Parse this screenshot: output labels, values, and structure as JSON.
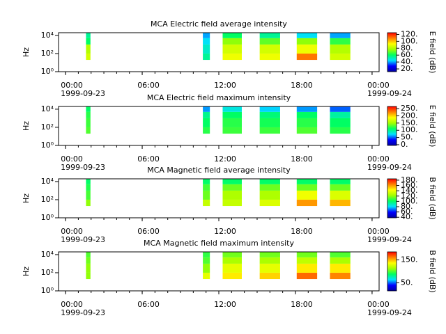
{
  "chart_data": [
    {
      "type": "heatmap",
      "title": "MCA  Electric field average intensity",
      "ylabel": "Hz",
      "colorbar_label": "E field (dB)",
      "xlim": [
        -0.55,
        24.55
      ],
      "ylim": [
        1,
        20000
      ],
      "log_y": true,
      "xticks": [
        {
          "value": 0,
          "label": "00:00"
        },
        {
          "value": 6,
          "label": "06:00"
        },
        {
          "value": 12,
          "label": "12:00"
        },
        {
          "value": 18,
          "label": "18:00"
        },
        {
          "value": 24,
          "label": "00:00"
        }
      ],
      "date_labels": [
        {
          "value": 0,
          "label": "1999-09-23"
        },
        {
          "value": 24,
          "label": "1999-09-24"
        }
      ],
      "yticks": [
        {
          "value": 1,
          "label": "10⁰"
        },
        {
          "value": 100,
          "label": "10²"
        },
        {
          "value": 10000,
          "label": "10⁴"
        }
      ],
      "clim": [
        12,
        125
      ],
      "cticks": [
        {
          "value": 20,
          "label": "20."
        },
        {
          "value": 40,
          "label": "40."
        },
        {
          "value": 60,
          "label": "60."
        },
        {
          "value": 80,
          "label": "80."
        },
        {
          "value": 100,
          "label": "100."
        },
        {
          "value": 120,
          "label": "120."
        }
      ],
      "colormap": [
        "#0000a0",
        "#0000ff",
        "#00e0ff",
        "#00ff60",
        "#a0ff00",
        "#ffff00",
        "#ff8000",
        "#ff0000"
      ],
      "freq_edges": [
        20,
        100,
        1000,
        5000,
        20000
      ],
      "blocks": [
        {
          "t": [
            1.6,
            1.95
          ],
          "values": [
            85,
            80,
            60,
            55
          ]
        },
        {
          "t": [
            10.75,
            11.3
          ],
          "values": [
            55,
            50,
            45,
            40
          ]
        },
        {
          "t": [
            12.3,
            13.8
          ],
          "values": [
            90,
            85,
            75,
            60
          ]
        },
        {
          "t": [
            15.2,
            16.8
          ],
          "values": [
            90,
            85,
            70,
            55
          ]
        },
        {
          "t": [
            18.1,
            19.7
          ],
          "values": [
            110,
            90,
            75,
            45
          ]
        },
        {
          "t": [
            20.7,
            22.3
          ],
          "values": [
            85,
            80,
            65,
            40
          ]
        }
      ]
    },
    {
      "type": "heatmap",
      "title": "MCA  Electric field maximum intensity",
      "ylabel": "Hz",
      "colorbar_label": "E field (dB)",
      "xlim": [
        -0.55,
        24.55
      ],
      "ylim": [
        1,
        20000
      ],
      "log_y": true,
      "xticks": [
        {
          "value": 0,
          "label": "00:00"
        },
        {
          "value": 6,
          "label": "06:00"
        },
        {
          "value": 12,
          "label": "12:00"
        },
        {
          "value": 18,
          "label": "18:00"
        },
        {
          "value": 24,
          "label": "00:00"
        }
      ],
      "date_labels": [
        {
          "value": 0,
          "label": "1999-09-23"
        },
        {
          "value": 24,
          "label": "1999-09-24"
        }
      ],
      "yticks": [
        {
          "value": 1,
          "label": "10⁰"
        },
        {
          "value": 100,
          "label": "10²"
        },
        {
          "value": 10000,
          "label": "10⁴"
        }
      ],
      "clim": [
        -5,
        265
      ],
      "cticks": [
        {
          "value": 0,
          "label": "0."
        },
        {
          "value": 50,
          "label": "50."
        },
        {
          "value": 100,
          "label": "100."
        },
        {
          "value": 150,
          "label": "150."
        },
        {
          "value": 200,
          "label": "200."
        },
        {
          "value": 250,
          "label": "250."
        }
      ],
      "colormap": [
        "#0000a0",
        "#0000ff",
        "#00e0ff",
        "#00ff60",
        "#a0ff00",
        "#ffff00",
        "#ff8000",
        "#ff0000"
      ],
      "freq_edges": [
        20,
        100,
        1000,
        5000,
        20000
      ],
      "blocks": [
        {
          "t": [
            1.6,
            1.95
          ],
          "values": [
            130,
            125,
            120,
            110
          ]
        },
        {
          "t": [
            10.75,
            11.3
          ],
          "values": [
            120,
            110,
            100,
            60
          ]
        },
        {
          "t": [
            12.3,
            13.8
          ],
          "values": [
            125,
            120,
            110,
            80
          ]
        },
        {
          "t": [
            15.2,
            16.8
          ],
          "values": [
            125,
            115,
            105,
            70
          ]
        },
        {
          "t": [
            18.1,
            19.7
          ],
          "values": [
            130,
            120,
            110,
            60
          ]
        },
        {
          "t": [
            20.7,
            22.3
          ],
          "values": [
            120,
            110,
            95,
            50
          ]
        }
      ]
    },
    {
      "type": "heatmap",
      "title": "MCA  Magnetic field average intensity",
      "ylabel": "Hz",
      "colorbar_label": "B field (dB)",
      "xlim": [
        -0.55,
        24.55
      ],
      "ylim": [
        1,
        20000
      ],
      "log_y": true,
      "xticks": [
        {
          "value": 0,
          "label": "00:00"
        },
        {
          "value": 6,
          "label": "06:00"
        },
        {
          "value": 12,
          "label": "12:00"
        },
        {
          "value": 18,
          "label": "18:00"
        },
        {
          "value": 24,
          "label": "00:00"
        }
      ],
      "date_labels": [
        {
          "value": 0,
          "label": "1999-09-23"
        },
        {
          "value": 24,
          "label": "1999-09-24"
        }
      ],
      "yticks": [
        {
          "value": 1,
          "label": "10⁰"
        },
        {
          "value": 100,
          "label": "10²"
        },
        {
          "value": 10000,
          "label": "10⁴"
        }
      ],
      "clim": [
        38,
        185
      ],
      "cticks": [
        {
          "value": 40,
          "label": "40."
        },
        {
          "value": 60,
          "label": "60."
        },
        {
          "value": 80,
          "label": "80."
        },
        {
          "value": 100,
          "label": "100."
        },
        {
          "value": 120,
          "label": "120."
        },
        {
          "value": 140,
          "label": "140."
        },
        {
          "value": 160,
          "label": "160."
        },
        {
          "value": 180,
          "label": "180."
        }
      ],
      "colormap": [
        "#0000a0",
        "#0000ff",
        "#00e0ff",
        "#00ff60",
        "#a0ff00",
        "#ffff00",
        "#ff8000",
        "#ff0000"
      ],
      "freq_edges": [
        20,
        100,
        1000,
        5000,
        20000
      ],
      "blocks": [
        {
          "t": [
            1.6,
            1.95
          ],
          "values": [
            120,
            110,
            105,
            100
          ]
        },
        {
          "t": [
            10.75,
            11.3
          ],
          "values": [
            130,
            115,
            110,
            100
          ]
        },
        {
          "t": [
            12.3,
            13.8
          ],
          "values": [
            130,
            125,
            115,
            100
          ]
        },
        {
          "t": [
            15.2,
            16.8
          ],
          "values": [
            135,
            125,
            115,
            100
          ]
        },
        {
          "t": [
            18.1,
            19.7
          ],
          "values": [
            160,
            140,
            115,
            100
          ]
        },
        {
          "t": [
            20.7,
            22.3
          ],
          "values": [
            155,
            135,
            115,
            100
          ]
        }
      ]
    },
    {
      "type": "heatmap",
      "title": "MCA  Magnetic field maximum intensity",
      "ylabel": "Hz",
      "colorbar_label": "B field (dB)",
      "xlim": [
        -0.55,
        24.55
      ],
      "ylim": [
        1,
        20000
      ],
      "log_y": true,
      "xticks": [
        {
          "value": 0,
          "label": "00:00"
        },
        {
          "value": 6,
          "label": "06:00"
        },
        {
          "value": 12,
          "label": "12:00"
        },
        {
          "value": 18,
          "label": "18:00"
        },
        {
          "value": 24,
          "label": "00:00"
        }
      ],
      "date_labels": [
        {
          "value": 0,
          "label": "1999-09-23"
        },
        {
          "value": 24,
          "label": "1999-09-24"
        }
      ],
      "yticks": [
        {
          "value": 1,
          "label": "10⁰"
        },
        {
          "value": 100,
          "label": "10²"
        },
        {
          "value": 10000,
          "label": "10⁴"
        }
      ],
      "clim": [
        15,
        185
      ],
      "cticks": [
        {
          "value": 50,
          "label": "50."
        },
        {
          "value": 150,
          "label": "150."
        }
      ],
      "colormap": [
        "#0000a0",
        "#0000ff",
        "#00e0ff",
        "#00ff60",
        "#a0ff00",
        "#ffff00",
        "#ff8000",
        "#ff0000"
      ],
      "freq_edges": [
        20,
        100,
        1000,
        5000,
        20000
      ],
      "blocks": [
        {
          "t": [
            1.6,
            1.95
          ],
          "values": [
            110,
            110,
            105,
            100
          ]
        },
        {
          "t": [
            10.75,
            11.3
          ],
          "values": [
            130,
            110,
            100,
            95
          ]
        },
        {
          "t": [
            12.3,
            13.8
          ],
          "values": [
            140,
            130,
            115,
            105
          ]
        },
        {
          "t": [
            15.2,
            16.8
          ],
          "values": [
            145,
            130,
            115,
            105
          ]
        },
        {
          "t": [
            18.1,
            19.7
          ],
          "values": [
            165,
            140,
            120,
            105
          ]
        },
        {
          "t": [
            20.7,
            22.3
          ],
          "values": [
            160,
            140,
            115,
            100
          ]
        }
      ]
    }
  ]
}
